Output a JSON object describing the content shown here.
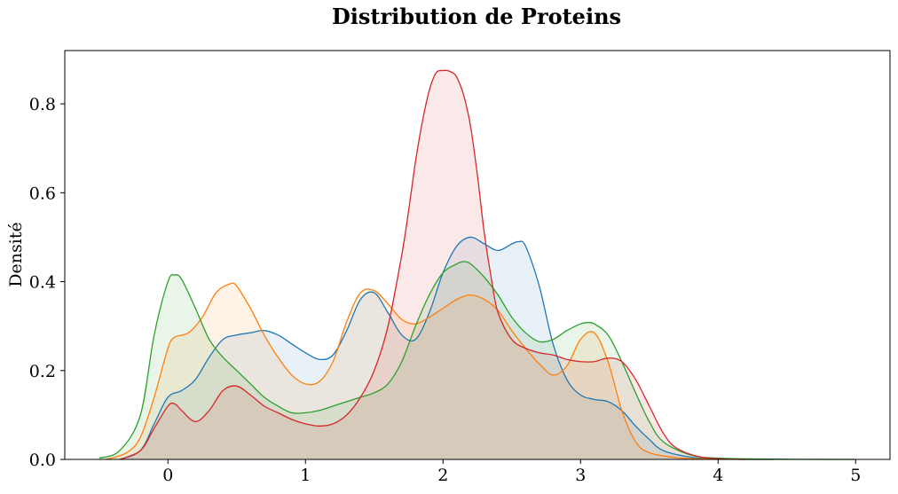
{
  "chart_data": {
    "type": "area",
    "title": "Distribution de Proteins",
    "xlabel": "",
    "ylabel": "Densité",
    "xlim": [
      -0.75,
      5.25
    ],
    "ylim": [
      0,
      0.92
    ],
    "xticks": [
      0,
      1,
      2,
      3,
      4,
      5
    ],
    "xtick_labels": [
      "0",
      "1",
      "2",
      "3",
      "4",
      "5"
    ],
    "yticks": [
      0.0,
      0.2,
      0.4,
      0.6,
      0.8
    ],
    "ytick_labels": [
      "0.0",
      "0.2",
      "0.4",
      "0.6",
      "0.8"
    ],
    "grid": false,
    "series": [
      {
        "color": "#1f77b4",
        "fill_opacity": 0.1,
        "x": [
          -0.35,
          -0.2,
          -0.1,
          0.0,
          0.1,
          0.2,
          0.3,
          0.4,
          0.5,
          0.6,
          0.7,
          0.8,
          0.9,
          1.0,
          1.1,
          1.2,
          1.3,
          1.4,
          1.5,
          1.6,
          1.7,
          1.8,
          1.9,
          2.0,
          2.1,
          2.2,
          2.3,
          2.4,
          2.5,
          2.55,
          2.6,
          2.7,
          2.8,
          2.9,
          3.0,
          3.1,
          3.2,
          3.3,
          3.4,
          3.5,
          3.6,
          3.8,
          4.0,
          4.4
        ],
        "y": [
          0.0,
          0.02,
          0.08,
          0.14,
          0.155,
          0.18,
          0.23,
          0.27,
          0.28,
          0.285,
          0.29,
          0.28,
          0.26,
          0.24,
          0.225,
          0.235,
          0.29,
          0.36,
          0.375,
          0.33,
          0.28,
          0.27,
          0.33,
          0.42,
          0.48,
          0.5,
          0.485,
          0.47,
          0.485,
          0.49,
          0.48,
          0.39,
          0.26,
          0.18,
          0.145,
          0.135,
          0.13,
          0.11,
          0.075,
          0.045,
          0.02,
          0.005,
          0.001,
          0.0
        ]
      },
      {
        "color": "#ff7f0e",
        "fill_opacity": 0.1,
        "x": [
          -0.45,
          -0.3,
          -0.2,
          -0.1,
          0.0,
          0.05,
          0.15,
          0.25,
          0.35,
          0.45,
          0.5,
          0.6,
          0.7,
          0.8,
          0.9,
          1.0,
          1.1,
          1.2,
          1.3,
          1.4,
          1.5,
          1.6,
          1.7,
          1.8,
          1.9,
          2.0,
          2.1,
          2.2,
          2.3,
          2.4,
          2.5,
          2.6,
          2.7,
          2.8,
          2.9,
          3.0,
          3.1,
          3.2,
          3.3,
          3.4,
          3.5,
          3.7,
          3.9,
          4.3
        ],
        "y": [
          0.0,
          0.015,
          0.05,
          0.14,
          0.25,
          0.275,
          0.285,
          0.32,
          0.375,
          0.395,
          0.39,
          0.34,
          0.28,
          0.23,
          0.19,
          0.17,
          0.175,
          0.22,
          0.31,
          0.375,
          0.38,
          0.35,
          0.315,
          0.305,
          0.32,
          0.34,
          0.36,
          0.37,
          0.36,
          0.335,
          0.29,
          0.25,
          0.215,
          0.19,
          0.21,
          0.27,
          0.285,
          0.22,
          0.11,
          0.04,
          0.015,
          0.004,
          0.001,
          0.0
        ]
      },
      {
        "color": "#2ca02c",
        "fill_opacity": 0.1,
        "x": [
          -0.5,
          -0.35,
          -0.2,
          -0.1,
          0.0,
          0.05,
          0.1,
          0.2,
          0.3,
          0.4,
          0.5,
          0.6,
          0.7,
          0.8,
          0.9,
          1.0,
          1.1,
          1.2,
          1.3,
          1.4,
          1.5,
          1.6,
          1.7,
          1.8,
          1.9,
          2.0,
          2.1,
          2.15,
          2.2,
          2.3,
          2.4,
          2.5,
          2.6,
          2.7,
          2.8,
          2.9,
          3.0,
          3.05,
          3.1,
          3.2,
          3.3,
          3.4,
          3.5,
          3.6,
          3.8,
          4.0,
          4.3,
          4.6,
          5.0
        ],
        "y": [
          0.003,
          0.02,
          0.1,
          0.28,
          0.4,
          0.415,
          0.405,
          0.34,
          0.27,
          0.23,
          0.2,
          0.17,
          0.14,
          0.12,
          0.105,
          0.105,
          0.11,
          0.12,
          0.13,
          0.14,
          0.15,
          0.17,
          0.22,
          0.3,
          0.37,
          0.42,
          0.44,
          0.445,
          0.44,
          0.41,
          0.37,
          0.32,
          0.285,
          0.265,
          0.27,
          0.29,
          0.305,
          0.308,
          0.305,
          0.28,
          0.22,
          0.15,
          0.085,
          0.04,
          0.01,
          0.003,
          0.001,
          0.0003,
          0.0
        ]
      },
      {
        "color": "#d62728",
        "fill_opacity": 0.1,
        "x": [
          -0.35,
          -0.2,
          -0.1,
          0.0,
          0.05,
          0.1,
          0.2,
          0.3,
          0.4,
          0.5,
          0.6,
          0.7,
          0.8,
          0.9,
          1.0,
          1.1,
          1.2,
          1.3,
          1.4,
          1.5,
          1.6,
          1.7,
          1.75,
          1.8,
          1.85,
          1.9,
          1.95,
          2.0,
          2.03,
          2.07,
          2.1,
          2.15,
          2.2,
          2.25,
          2.3,
          2.35,
          2.4,
          2.5,
          2.6,
          2.7,
          2.8,
          2.9,
          3.0,
          3.1,
          3.2,
          3.3,
          3.4,
          3.5,
          3.6,
          3.7,
          3.9,
          4.2
        ],
        "y": [
          0.0,
          0.02,
          0.07,
          0.12,
          0.125,
          0.11,
          0.085,
          0.11,
          0.155,
          0.165,
          0.145,
          0.12,
          0.105,
          0.09,
          0.08,
          0.075,
          0.08,
          0.1,
          0.14,
          0.2,
          0.3,
          0.46,
          0.56,
          0.67,
          0.76,
          0.83,
          0.87,
          0.875,
          0.875,
          0.87,
          0.86,
          0.82,
          0.75,
          0.64,
          0.51,
          0.41,
          0.33,
          0.27,
          0.25,
          0.24,
          0.235,
          0.225,
          0.22,
          0.22,
          0.228,
          0.22,
          0.18,
          0.12,
          0.06,
          0.025,
          0.004,
          0.0
        ]
      }
    ]
  }
}
